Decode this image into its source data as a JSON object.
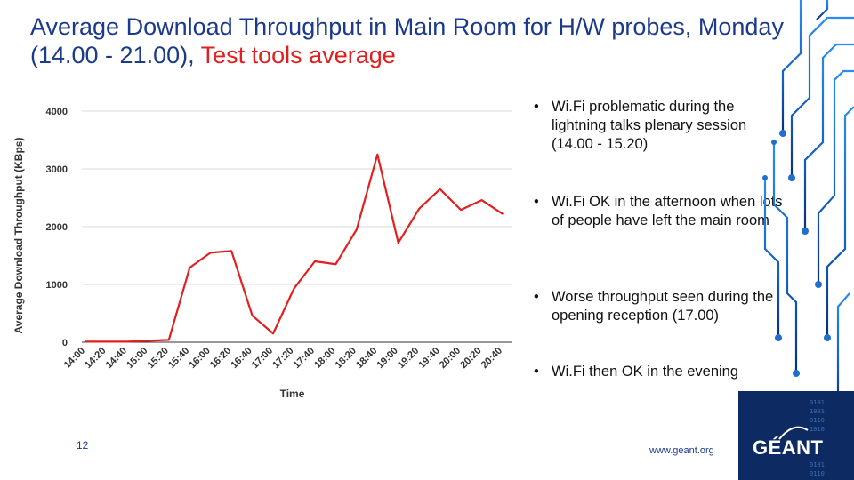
{
  "slide": {
    "title_main": "Average Download Throughput in Main Room for H/W probes, Monday (14.00 - 21.00), ",
    "title_accent": "Test tools average",
    "slide_number": "12",
    "url": "www.geant.org",
    "logo": "GÉANT"
  },
  "bullets": [
    {
      "text": "Wi.Fi problematic during the lightning talks plenary session (14.00 - 15.20)"
    },
    {
      "text": "Wi.Fi OK in the afternoon when lots of people have left the main room"
    },
    {
      "text": "Worse throughput seen during the opening reception (17.00)"
    },
    {
      "text": "Wi.Fi then OK in the evening"
    }
  ],
  "chart_data": {
    "type": "line",
    "title": "",
    "xlabel": "Time",
    "ylabel": "Average Download Throughput (KBps)",
    "ylim": [
      0,
      4000
    ],
    "yticks": [
      0,
      1000,
      2000,
      3000,
      4000
    ],
    "grid": true,
    "categories": [
      "14:00",
      "14:20",
      "14:40",
      "15:00",
      "15:20",
      "15:40",
      "16:00",
      "16:20",
      "16:40",
      "17:00",
      "17:20",
      "17:40",
      "18:00",
      "18:20",
      "18:40",
      "19:00",
      "19:20",
      "19:40",
      "20:00",
      "20:20",
      "20:40"
    ],
    "series": [
      {
        "name": "Test tools average",
        "color": "#e02020",
        "values": [
          10,
          10,
          10,
          25,
          40,
          1290,
          1550,
          1580,
          460,
          150,
          930,
          1400,
          1350,
          1950,
          3250,
          1720,
          2310,
          2650,
          2290,
          2460,
          2220
        ]
      }
    ]
  },
  "colors": {
    "title": "#1b3a8a",
    "accent": "#e02020",
    "grid": "#d9d9d9",
    "circuit": "#1e6fd0"
  }
}
